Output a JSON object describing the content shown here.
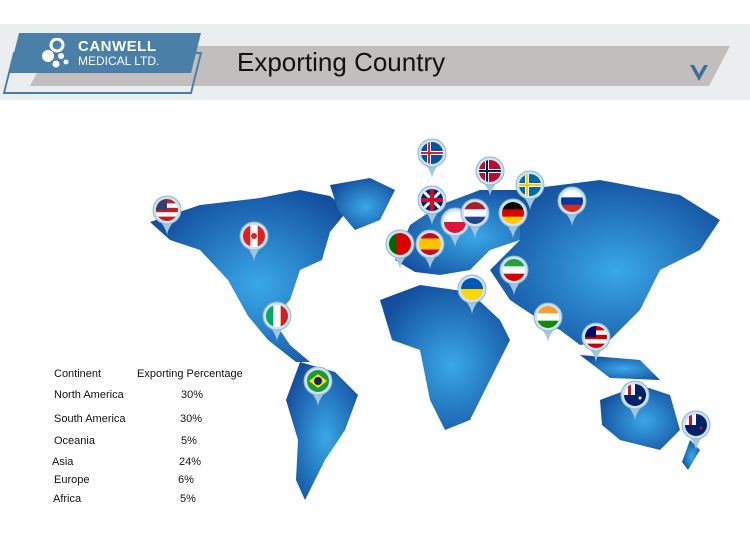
{
  "header": {
    "logo_name": "CANWELL",
    "logo_sub": "MEDICAL LTD.",
    "title": "Exporting Country",
    "chevron_icon": "chevron-down-icon"
  },
  "colors": {
    "brand": "#4a7fa7",
    "banner_bar": "#c1bebd",
    "map_blue": "#1e64b4",
    "map_light": "#3aa0e0"
  },
  "table": {
    "headers": [
      "Continent",
      "Exporting Percentage"
    ],
    "rows": [
      {
        "continent": "North America",
        "percent": "30%"
      },
      {
        "continent": "South America",
        "percent": "30%"
      },
      {
        "continent": "Oceania",
        "percent": "5%"
      },
      {
        "continent": "Asia",
        "percent": "24%"
      },
      {
        "continent": "Europe",
        "percent": "6%"
      },
      {
        "continent": "Africa",
        "percent": "5%"
      }
    ]
  },
  "flags": [
    "usa",
    "canada",
    "mexico",
    "brazil",
    "iceland",
    "norway",
    "sweden",
    "uk",
    "portugal",
    "spain",
    "poland",
    "netherlands",
    "germany",
    "russia",
    "ukraine",
    "iran",
    "india",
    "malaysia",
    "australia",
    "new-zealand"
  ]
}
